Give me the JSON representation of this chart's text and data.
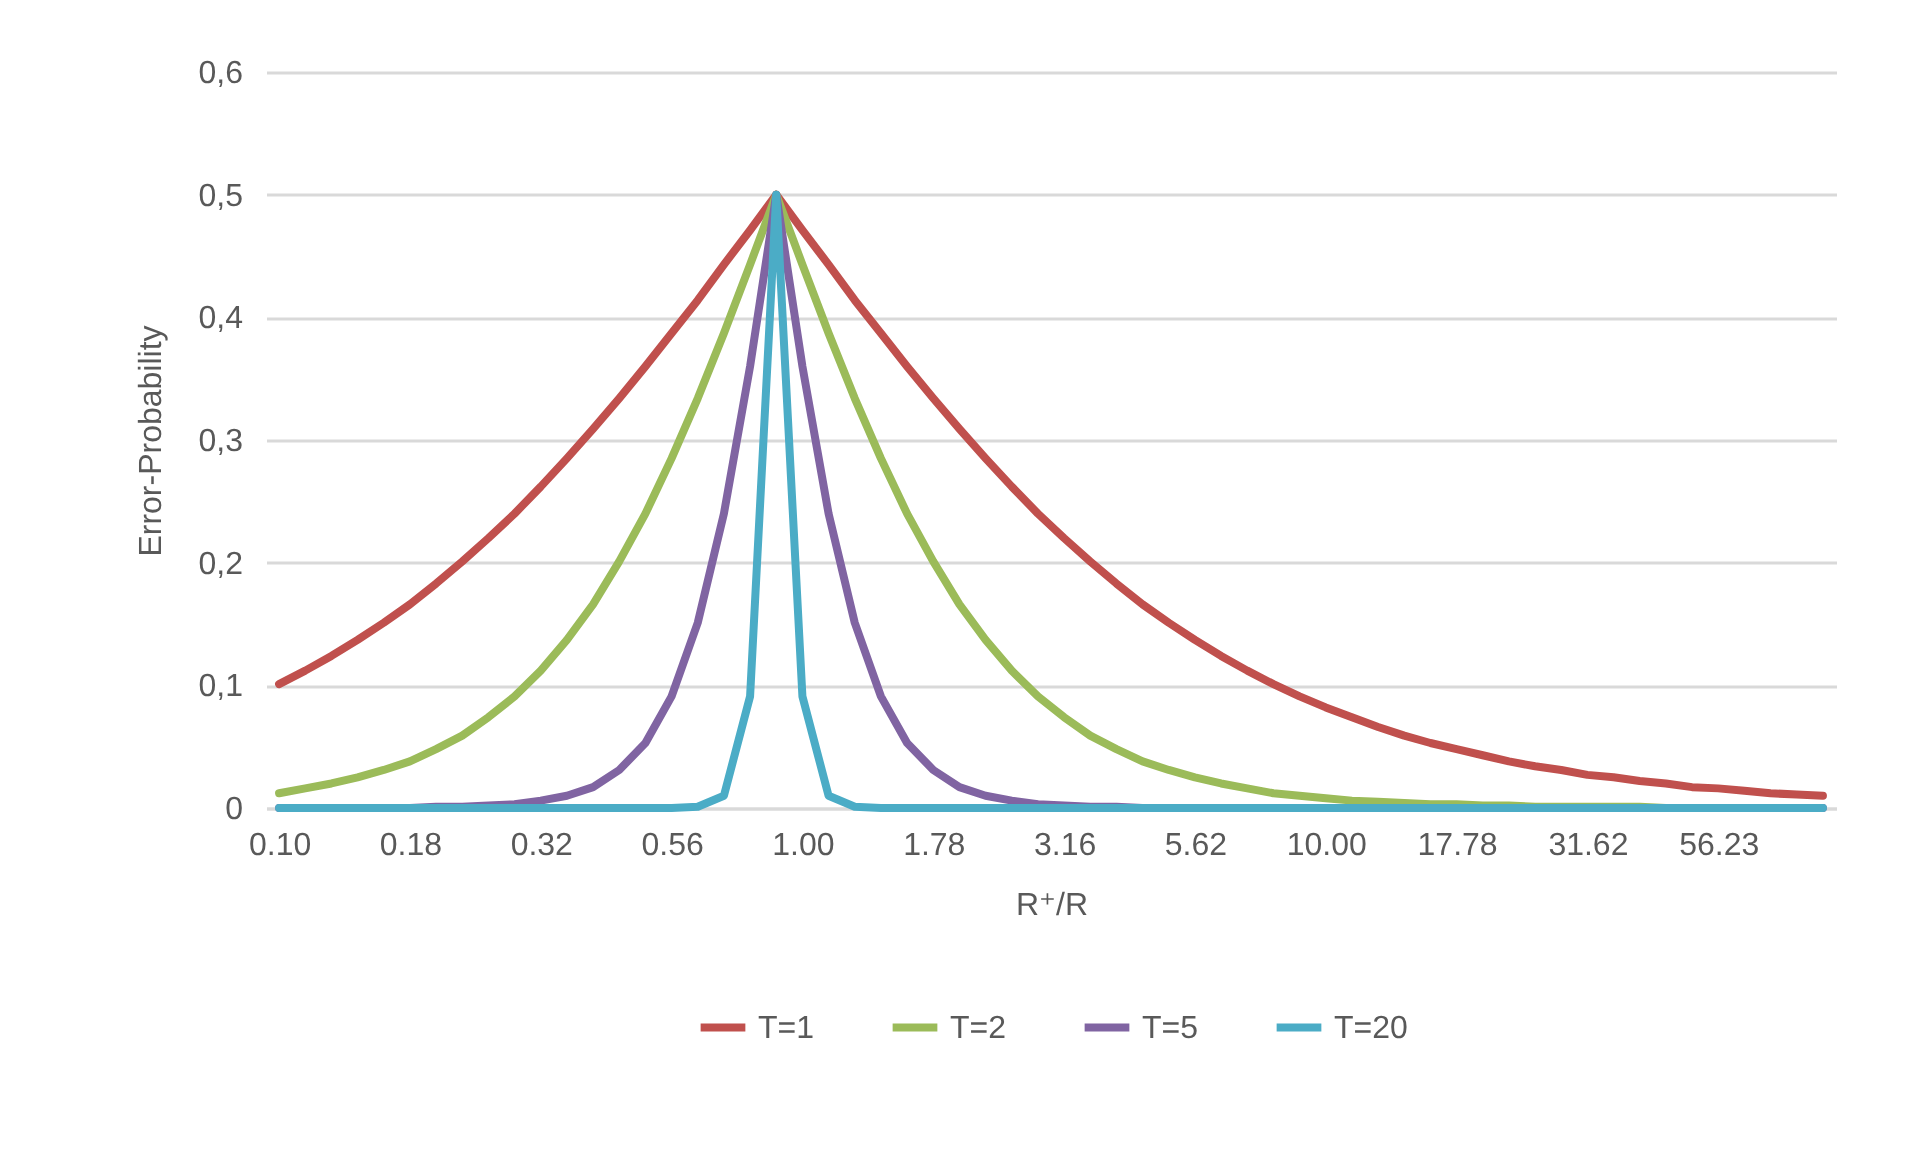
{
  "chart_data": {
    "type": "line",
    "xlabel": "R⁺/R",
    "ylabel": "Error-Probability",
    "categories": [
      "0.10",
      null,
      null,
      null,
      null,
      "0.18",
      null,
      null,
      null,
      null,
      "0.32",
      null,
      null,
      null,
      null,
      "0.56",
      null,
      null,
      null,
      null,
      "1.00",
      null,
      null,
      null,
      null,
      "1.78",
      null,
      null,
      null,
      null,
      "3.16",
      null,
      null,
      null,
      null,
      "5.62",
      null,
      null,
      null,
      null,
      "10.00",
      null,
      null,
      null,
      null,
      "17.78",
      null,
      null,
      null,
      null,
      "31.62",
      null,
      null,
      null,
      null,
      "56.23",
      null,
      null,
      null,
      null
    ],
    "series": [
      {
        "name": "T=1",
        "color": "#c0504d",
        "values": [
          0.101,
          0.112,
          0.124,
          0.137,
          0.151,
          0.166,
          0.183,
          0.201,
          0.22,
          0.24,
          0.262,
          0.285,
          0.309,
          0.334,
          0.36,
          0.387,
          0.414,
          0.443,
          0.471,
          0.5,
          0.471,
          0.443,
          0.414,
          0.387,
          0.36,
          0.334,
          0.309,
          0.285,
          0.262,
          0.24,
          0.22,
          0.201,
          0.183,
          0.166,
          0.151,
          0.137,
          0.124,
          0.112,
          0.101,
          0.091,
          0.082,
          0.074,
          0.066,
          0.059,
          0.053,
          0.048,
          0.043,
          0.038,
          0.034,
          0.031,
          0.027,
          0.025,
          0.022,
          0.02,
          0.017,
          0.016,
          0.014,
          0.012,
          0.011,
          0.01
        ]
      },
      {
        "name": "T=2",
        "color": "#9bbb59",
        "values": [
          0.012,
          0.016,
          0.02,
          0.025,
          0.031,
          0.038,
          0.048,
          0.059,
          0.074,
          0.091,
          0.112,
          0.137,
          0.166,
          0.201,
          0.24,
          0.285,
          0.334,
          0.387,
          0.443,
          0.5,
          0.443,
          0.387,
          0.334,
          0.285,
          0.24,
          0.201,
          0.166,
          0.137,
          0.112,
          0.091,
          0.074,
          0.059,
          0.048,
          0.038,
          0.031,
          0.025,
          0.02,
          0.016,
          0.012,
          0.01,
          0.008,
          0.006,
          0.005,
          0.004,
          0.003,
          0.003,
          0.002,
          0.002,
          0.001,
          0.001,
          0.001,
          0.001,
          0.001,
          0,
          0,
          null,
          null,
          null,
          null,
          null
        ]
      },
      {
        "name": "T=5",
        "color": "#8064a2",
        "values": [
          0,
          0,
          0,
          0,
          0,
          0,
          0.001,
          0.001,
          0.002,
          0.003,
          0.006,
          0.01,
          0.017,
          0.031,
          0.053,
          0.091,
          0.151,
          0.24,
          0.36,
          0.5,
          0.36,
          0.24,
          0.151,
          0.091,
          0.053,
          0.031,
          0.017,
          0.01,
          0.006,
          0.003,
          0.002,
          0.001,
          0.001,
          0,
          0,
          0,
          0,
          0,
          0,
          0,
          0,
          0,
          0,
          0,
          0,
          0,
          0,
          0,
          0,
          0,
          0,
          0,
          0,
          0,
          0,
          0,
          0,
          0,
          0,
          0
        ]
      },
      {
        "name": "T=20",
        "color": "#4bacc6",
        "values": [
          0,
          0,
          0,
          0,
          0,
          0,
          0,
          0,
          0,
          0,
          0,
          0,
          0,
          0,
          0,
          0,
          0.001,
          0.01,
          0.091,
          0.5,
          0.091,
          0.01,
          0.001,
          0,
          0,
          0,
          0,
          0,
          0,
          0,
          0,
          0,
          0,
          0,
          0,
          0,
          0,
          0,
          0,
          0,
          0,
          0,
          0,
          0,
          0,
          0,
          0,
          0,
          0,
          0,
          0,
          0,
          0,
          0,
          0,
          0,
          0,
          0,
          0,
          0
        ]
      }
    ],
    "ylim": [
      0,
      0.6
    ],
    "yticks": [
      {
        "value": 0,
        "label": "0"
      },
      {
        "value": 0.1,
        "label": "0,1"
      },
      {
        "value": 0.2,
        "label": "0,2"
      },
      {
        "value": 0.3,
        "label": "0,3"
      },
      {
        "value": 0.4,
        "label": "0,4"
      },
      {
        "value": 0.5,
        "label": "0,5"
      },
      {
        "value": 0.6,
        "label": "0,6"
      }
    ],
    "grid": "y",
    "legend": "bottom"
  }
}
